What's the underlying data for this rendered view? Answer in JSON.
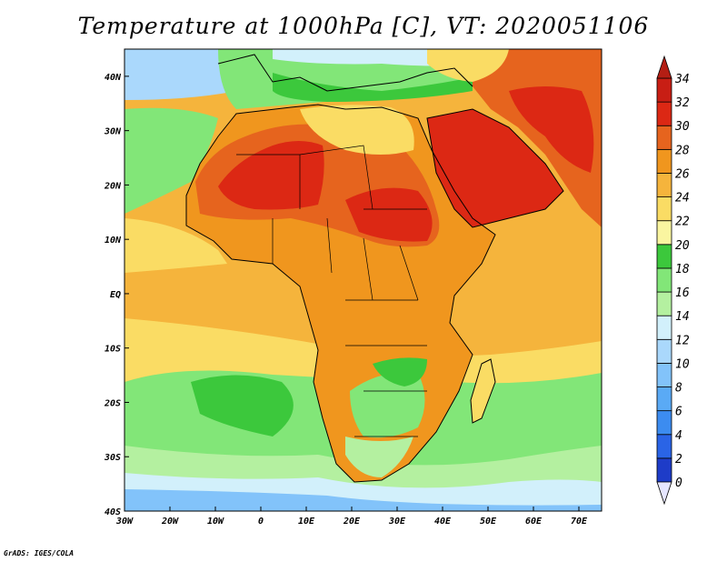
{
  "title": "Temperature at 1000hPa [C], VT: 2020051106",
  "credit": "GrADS: IGES/COLA",
  "map": {
    "lon_range": [
      -30,
      75
    ],
    "lat_range": [
      -40,
      45
    ],
    "lon_ticks": [
      {
        "value": -30,
        "label": "30W"
      },
      {
        "value": -20,
        "label": "20W"
      },
      {
        "value": -10,
        "label": "10W"
      },
      {
        "value": 0,
        "label": "0"
      },
      {
        "value": 10,
        "label": "10E"
      },
      {
        "value": 20,
        "label": "20E"
      },
      {
        "value": 30,
        "label": "30E"
      },
      {
        "value": 40,
        "label": "40E"
      },
      {
        "value": 50,
        "label": "50E"
      },
      {
        "value": 60,
        "label": "60E"
      },
      {
        "value": 70,
        "label": "70E"
      }
    ],
    "lat_ticks": [
      {
        "value": 40,
        "label": "40N"
      },
      {
        "value": 30,
        "label": "30N"
      },
      {
        "value": 20,
        "label": "20N"
      },
      {
        "value": 10,
        "label": "10N"
      },
      {
        "value": 0,
        "label": "EQ"
      },
      {
        "value": -10,
        "label": "10S"
      },
      {
        "value": -20,
        "label": "20S"
      },
      {
        "value": -30,
        "label": "30S"
      },
      {
        "value": -40,
        "label": "40S"
      }
    ]
  },
  "colorbar": {
    "levels": [
      0,
      2,
      4,
      6,
      8,
      10,
      12,
      14,
      16,
      18,
      20,
      22,
      24,
      26,
      28,
      30,
      32,
      34
    ],
    "colors": [
      "#1b1b8c",
      "#1e3cc8",
      "#2a64e6",
      "#3c8cf0",
      "#5aaaf5",
      "#82c3fa",
      "#aad8fc",
      "#d2f0fb",
      "#b4f0a0",
      "#82e678",
      "#3cc83c",
      "#faf5a0",
      "#fadc64",
      "#f5b43c",
      "#f0961e",
      "#e6641e",
      "#dc2814",
      "#c81e14"
    ],
    "under_color": "#e6e6ff",
    "over_color": "#b41e14"
  }
}
